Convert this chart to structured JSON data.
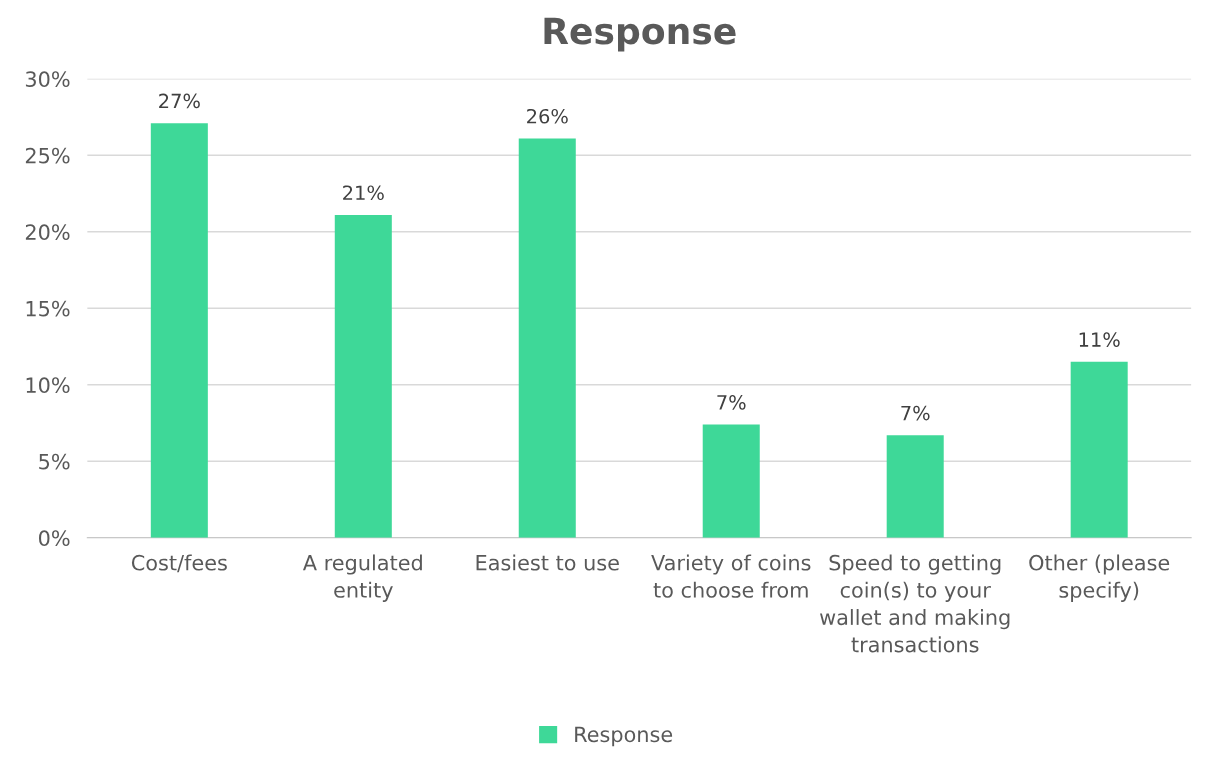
{
  "chart_data": {
    "type": "bar",
    "title": "Response",
    "categories": [
      "Cost/fees",
      "A regulated entity",
      "Easiest to use",
      "Variety of coins to choose from",
      "Speed to getting coin(s) to your wallet and making transactions",
      "Other (please specify)"
    ],
    "series": [
      {
        "name": "Response",
        "color": "#3ed898",
        "values": [
          27.1,
          21.1,
          26.1,
          7.4,
          6.7,
          11.5
        ],
        "value_labels": [
          "27%",
          "21%",
          "26%",
          "7%",
          "7%",
          "11%"
        ]
      }
    ],
    "ylim": [
      0,
      30
    ],
    "yticks": [
      {
        "value": 0,
        "label": "0%"
      },
      {
        "value": 5,
        "label": "5%"
      },
      {
        "value": 10,
        "label": "10%"
      },
      {
        "value": 15,
        "label": "15%"
      },
      {
        "value": 20,
        "label": "20%"
      },
      {
        "value": 25,
        "label": "25%"
      },
      {
        "value": 30,
        "label": "30%"
      }
    ],
    "grid": "y",
    "legend": "bottom"
  }
}
